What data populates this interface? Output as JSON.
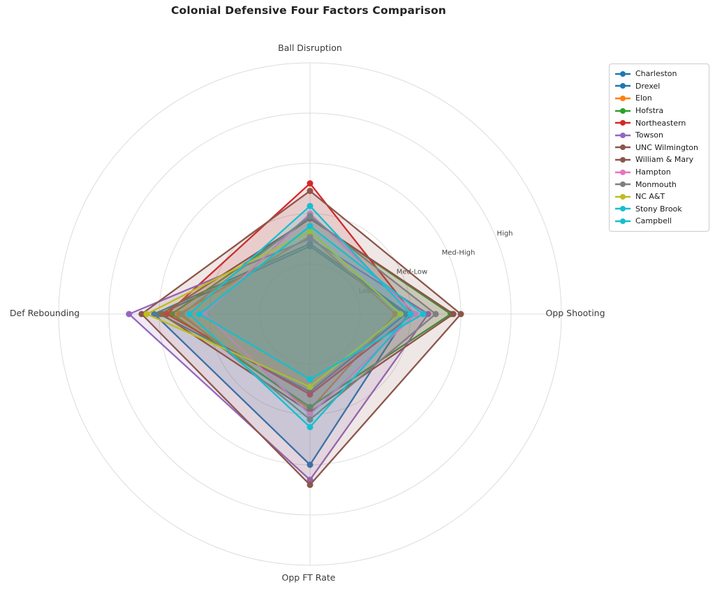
{
  "title": "Colonial Defensive Four Factors Comparison",
  "chart_data": {
    "type": "radar",
    "categories": [
      "Ball Disruption",
      "Opp Shooting",
      "Opp FT Rate",
      "Def Rebounding"
    ],
    "radial_tick_labels": [
      "Low",
      "Med-Low",
      "Med-High",
      "High"
    ],
    "radial_tick_values": [
      1,
      2,
      3,
      4
    ],
    "rmax": 5,
    "grid": true,
    "legend_position": "upper right",
    "fill_alpha": 0.14,
    "series": [
      {
        "name": "Charleston",
        "color": "#1f77b4",
        "values": [
          1.4,
          1.95,
          3.0,
          3.1
        ]
      },
      {
        "name": "Drexel",
        "color": "#1f77b4",
        "values": [
          1.35,
          1.9,
          1.55,
          3.0
        ]
      },
      {
        "name": "Elon",
        "color": "#ff7f0e",
        "values": [
          1.55,
          1.7,
          1.9,
          2.6
        ]
      },
      {
        "name": "Hofstra",
        "color": "#2ca02c",
        "values": [
          1.9,
          2.8,
          1.85,
          2.75
        ]
      },
      {
        "name": "Northeastern",
        "color": "#d62728",
        "values": [
          2.6,
          2.05,
          1.6,
          2.85
        ]
      },
      {
        "name": "Towson",
        "color": "#9467bd",
        "values": [
          1.5,
          2.35,
          3.3,
          3.6
        ]
      },
      {
        "name": "UNC Wilmington",
        "color": "#8c564b",
        "values": [
          1.9,
          2.85,
          1.95,
          2.95
        ]
      },
      {
        "name": "William & Mary",
        "color": "#8c564b",
        "values": [
          2.45,
          3.0,
          3.4,
          3.35
        ]
      },
      {
        "name": "Hampton",
        "color": "#e377c2",
        "values": [
          2.0,
          2.1,
          2.0,
          2.1
        ]
      },
      {
        "name": "Monmouth",
        "color": "#7f7f7f",
        "values": [
          1.95,
          2.5,
          2.1,
          2.55
        ]
      },
      {
        "name": "NC A&T",
        "color": "#bcbd22",
        "values": [
          1.65,
          1.8,
          1.45,
          3.25
        ]
      },
      {
        "name": "Stony Brook",
        "color": "#17becf",
        "values": [
          1.75,
          2.25,
          1.3,
          2.2
        ]
      },
      {
        "name": "Campbell",
        "color": "#17becf",
        "values": [
          2.15,
          2.0,
          2.25,
          2.4
        ]
      }
    ]
  }
}
